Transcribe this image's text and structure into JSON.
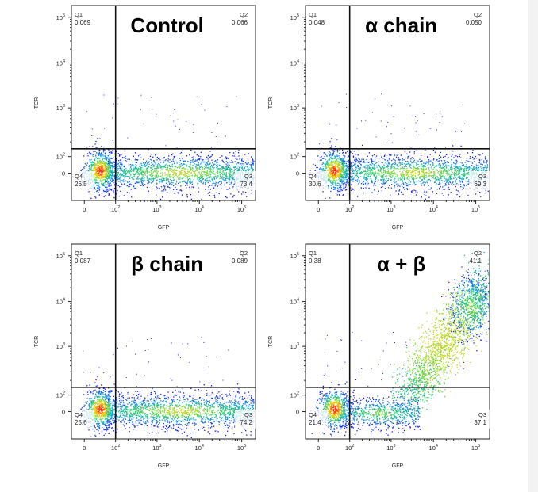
{
  "chart_data": [
    {
      "type": "scatter",
      "title": "Control",
      "xlabel": "GFP",
      "ylabel": "TCR",
      "x_scale": "biexponential",
      "y_scale": "biexponential",
      "x_ticks": [
        {
          "base": "0",
          "exp": ""
        },
        {
          "base": "10",
          "exp": "2"
        },
        {
          "base": "10",
          "exp": "3"
        },
        {
          "base": "10",
          "exp": "4"
        },
        {
          "base": "10",
          "exp": "5"
        }
      ],
      "y_ticks": [
        {
          "base": "0",
          "exp": ""
        },
        {
          "base": "10",
          "exp": "2"
        },
        {
          "base": "10",
          "exp": "3"
        },
        {
          "base": "10",
          "exp": "4"
        },
        {
          "base": "10",
          "exp": "5"
        }
      ],
      "quadrants": [
        {
          "name": "Q1",
          "percent": "0.069"
        },
        {
          "name": "Q2",
          "percent": "0.066"
        },
        {
          "name": "Q3",
          "percent": "73.4"
        },
        {
          "name": "Q4",
          "percent": "26.5"
        }
      ]
    },
    {
      "type": "scatter",
      "title": "α chain",
      "xlabel": "GFP",
      "ylabel": "TCR",
      "x_scale": "biexponential",
      "y_scale": "biexponential",
      "x_ticks": [
        {
          "base": "0",
          "exp": ""
        },
        {
          "base": "10",
          "exp": "2"
        },
        {
          "base": "10",
          "exp": "3"
        },
        {
          "base": "10",
          "exp": "4"
        },
        {
          "base": "10",
          "exp": "5"
        }
      ],
      "y_ticks": [
        {
          "base": "0",
          "exp": ""
        },
        {
          "base": "10",
          "exp": "2"
        },
        {
          "base": "10",
          "exp": "3"
        },
        {
          "base": "10",
          "exp": "4"
        },
        {
          "base": "10",
          "exp": "5"
        }
      ],
      "quadrants": [
        {
          "name": "Q1",
          "percent": "0.048"
        },
        {
          "name": "Q2",
          "percent": "0.050"
        },
        {
          "name": "Q3",
          "percent": "69.3"
        },
        {
          "name": "Q4",
          "percent": "30.6"
        }
      ]
    },
    {
      "type": "scatter",
      "title": "β chain",
      "xlabel": "GFP",
      "ylabel": "TCR",
      "x_scale": "biexponential",
      "y_scale": "biexponential",
      "x_ticks": [
        {
          "base": "0",
          "exp": ""
        },
        {
          "base": "10",
          "exp": "2"
        },
        {
          "base": "10",
          "exp": "3"
        },
        {
          "base": "10",
          "exp": "4"
        },
        {
          "base": "10",
          "exp": "5"
        }
      ],
      "y_ticks": [
        {
          "base": "0",
          "exp": ""
        },
        {
          "base": "10",
          "exp": "2"
        },
        {
          "base": "10",
          "exp": "3"
        },
        {
          "base": "10",
          "exp": "4"
        },
        {
          "base": "10",
          "exp": "5"
        }
      ],
      "quadrants": [
        {
          "name": "Q1",
          "percent": "0.087"
        },
        {
          "name": "Q2",
          "percent": "0.089"
        },
        {
          "name": "Q3",
          "percent": "74.2"
        },
        {
          "name": "Q4",
          "percent": "25.6"
        }
      ]
    },
    {
      "type": "scatter",
      "title": "α + β",
      "xlabel": "GFP",
      "ylabel": "TCR",
      "x_scale": "biexponential",
      "y_scale": "biexponential",
      "x_ticks": [
        {
          "base": "0",
          "exp": ""
        },
        {
          "base": "10",
          "exp": "2"
        },
        {
          "base": "10",
          "exp": "3"
        },
        {
          "base": "10",
          "exp": "4"
        },
        {
          "base": "10",
          "exp": "5"
        }
      ],
      "y_ticks": [
        {
          "base": "0",
          "exp": ""
        },
        {
          "base": "10",
          "exp": "2"
        },
        {
          "base": "10",
          "exp": "3"
        },
        {
          "base": "10",
          "exp": "4"
        },
        {
          "base": "10",
          "exp": "5"
        }
      ],
      "quadrants": [
        {
          "name": "Q1",
          "percent": "0.38"
        },
        {
          "name": "Q2",
          "percent": "41.1"
        },
        {
          "name": "Q3",
          "percent": "37.1"
        },
        {
          "name": "Q4",
          "percent": "21.4"
        }
      ]
    }
  ],
  "colors": {
    "density_low": "#1a1aff",
    "density_mid": "#22cc88",
    "density_high": "#ffee00",
    "density_peak": "#ff1a00",
    "gate_line": "#111111",
    "background": "#ffffff"
  }
}
